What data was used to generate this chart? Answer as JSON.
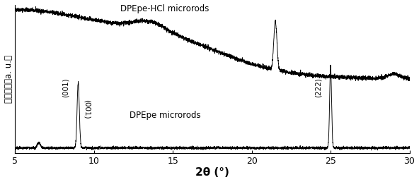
{
  "xlabel": "2θ (°)",
  "ylabel": "相对强度（a. u.）",
  "xlim": [
    5,
    30
  ],
  "xticks": [
    5,
    10,
    15,
    20,
    25,
    30
  ],
  "background_color": "#ffffff",
  "line_color": "#000000",
  "label1": "DPEpe-HCl microrods",
  "label2": "DPEpe microrods",
  "peak_label1": "(001)",
  "peak_label2": "(222)",
  "seed": 42
}
